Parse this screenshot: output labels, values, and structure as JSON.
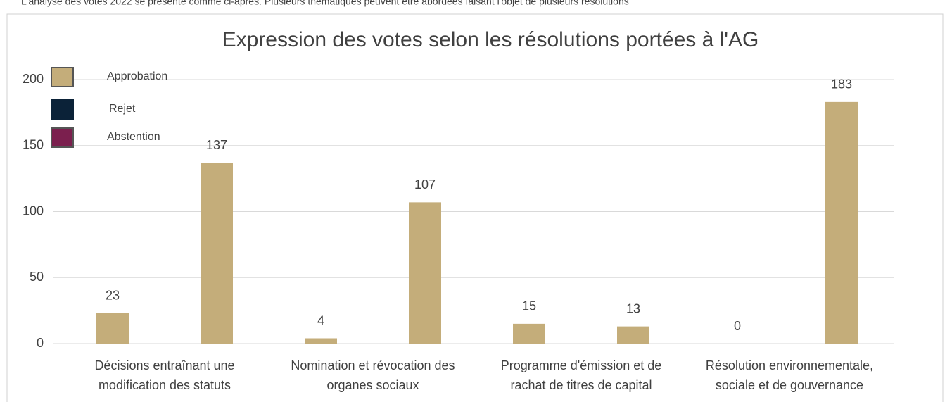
{
  "caption": "L'analyse des votes 2022 se présente comme ci-après. Plusieurs thématiques peuvent être abordées faisant l'objet de plusieurs résolutions",
  "chart_data": {
    "type": "bar",
    "title": "Expression des votes selon les résolutions portées à l'AG",
    "categories": [
      "Décisions entraînant une modification des statuts",
      null,
      "Nomination et révocation des organes sociaux",
      null,
      "Programme d'émission et de rachat de titres de capital",
      null,
      "Résolution environnementale, sociale et de gouvernance",
      null
    ],
    "series": [
      {
        "name": "Approbation",
        "color": "#c4ad7a",
        "values": [
          23,
          137,
          4,
          107,
          15,
          13,
          0,
          183
        ]
      }
    ],
    "legend": [
      {
        "name": "Approbation",
        "color": "#c4ad7a"
      },
      {
        "name": "Rejet",
        "color": "#0b2238"
      },
      {
        "name": "Abstention",
        "color": "#7b1f4e"
      }
    ],
    "ylim": [
      0,
      200
    ],
    "yticks": [
      0,
      50,
      100,
      150,
      200
    ],
    "grid": true
  }
}
